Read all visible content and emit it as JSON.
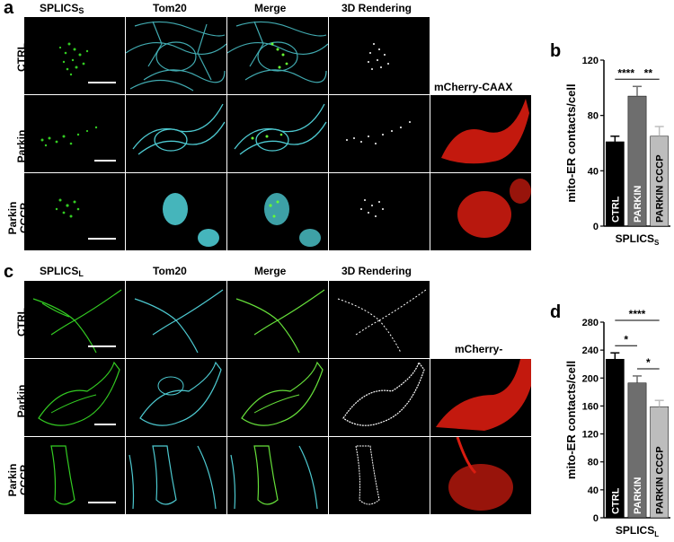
{
  "figure": {
    "panel_a": {
      "letter": "a",
      "col_headers": [
        "SPLICS",
        "Tom20",
        "Merge",
        "3D Rendering"
      ],
      "col0_sub": "S",
      "rows": [
        "CTRL",
        "Parkin",
        "Parkin\nCCCP"
      ],
      "extra_label": "mCherry-CAAX"
    },
    "panel_c": {
      "letter": "c",
      "col_headers": [
        "SPLICS",
        "Tom20",
        "Merge",
        "3D Rendering"
      ],
      "col0_sub": "L",
      "rows": [
        "CTRL",
        "Parkin",
        "Parkin\nCCCP"
      ],
      "extra_label": "mCherry-"
    },
    "panel_b": {
      "letter": "b"
    },
    "panel_d": {
      "letter": "d"
    }
  },
  "chart_data": [
    {
      "type": "bar",
      "panel": "b",
      "categories": [
        "CTRL",
        "PARKIN",
        "PARKIN CCCP"
      ],
      "values": [
        61,
        94,
        65
      ],
      "errors": [
        4,
        7,
        7
      ],
      "ylabel": "mito-ER contacts/cell",
      "xlabel": "SPLICS",
      "xlabel_sub": "S",
      "ylim": [
        0,
        120
      ],
      "yticks": [
        0,
        40,
        80,
        120
      ],
      "colors": [
        "#000000",
        "#6e6e6e",
        "#bdbdbd"
      ],
      "significance": [
        {
          "from": 0,
          "to": 1,
          "label": "****"
        },
        {
          "from": 1,
          "to": 2,
          "label": "**"
        }
      ]
    },
    {
      "type": "bar",
      "panel": "d",
      "categories": [
        "CTRL",
        "PARKIN",
        "PARKIN CCCP"
      ],
      "values": [
        227,
        193,
        159
      ],
      "errors": [
        9,
        10,
        9
      ],
      "ylabel": "mito-ER contacts/cell",
      "xlabel": "SPLICS",
      "xlabel_sub": "L",
      "ylim": [
        0,
        280
      ],
      "yticks": [
        0,
        40,
        80,
        120,
        160,
        200,
        240,
        280
      ],
      "colors": [
        "#000000",
        "#6e6e6e",
        "#bdbdbd"
      ],
      "significance": [
        {
          "from": 0,
          "to": 2,
          "label": "****"
        },
        {
          "from": 0,
          "to": 1,
          "label": "*"
        },
        {
          "from": 1,
          "to": 2,
          "label": "*"
        }
      ]
    }
  ]
}
